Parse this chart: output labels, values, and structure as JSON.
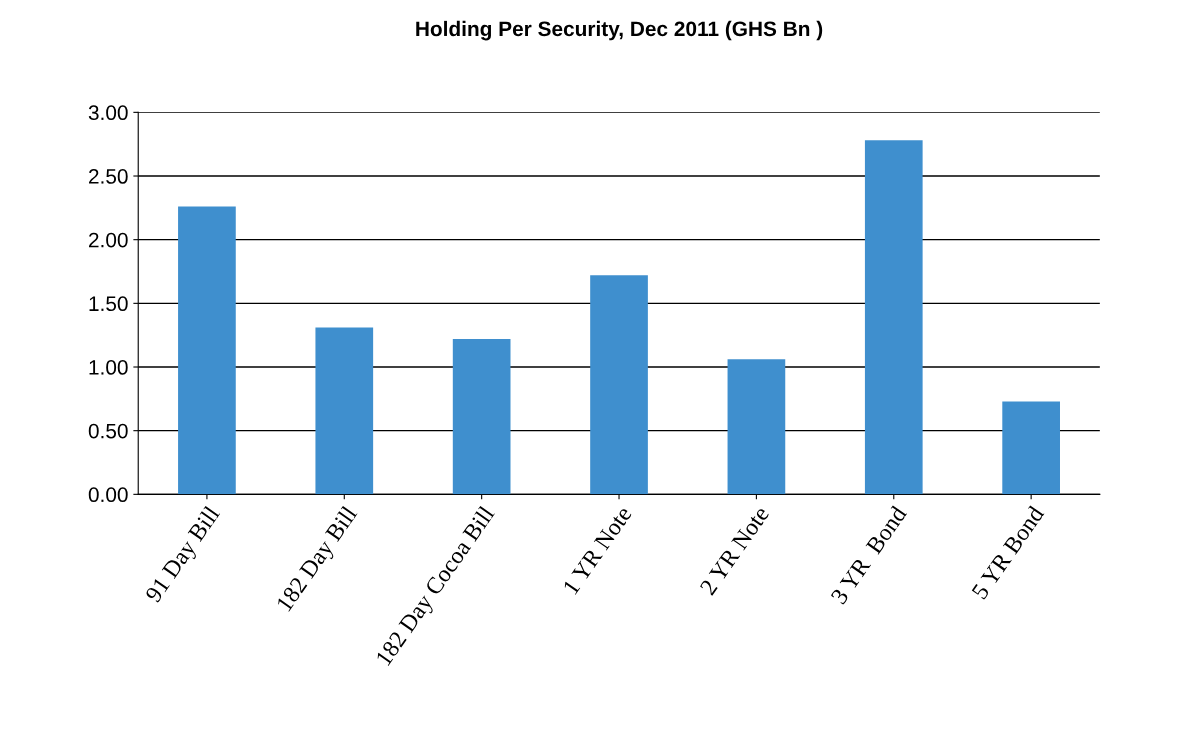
{
  "chart_data": {
    "type": "bar",
    "title": "Holding Per Security, Dec 2011 (GHS Bn )",
    "categories": [
      "91 Day Bill",
      "182 Day Bill",
      "182 Day Cocoa Bill",
      "1 YR Note",
      "2 YR Note",
      "3 YR  Bond",
      "5 YR Bond"
    ],
    "values": [
      2.26,
      1.31,
      1.22,
      1.72,
      1.06,
      2.78,
      0.73
    ],
    "color": "#3f8fce",
    "ylim": [
      0,
      3
    ],
    "yticks": [
      {
        "value": 0,
        "label": "0.00"
      },
      {
        "value": 0.5,
        "label": "0.50"
      },
      {
        "value": 1,
        "label": "1.00"
      },
      {
        "value": 1.5,
        "label": "1.50"
      },
      {
        "value": 2,
        "label": "2.00"
      },
      {
        "value": 2.5,
        "label": "2.50"
      },
      {
        "value": 3,
        "label": "3.00"
      }
    ],
    "grid": "y",
    "legend": false
  }
}
